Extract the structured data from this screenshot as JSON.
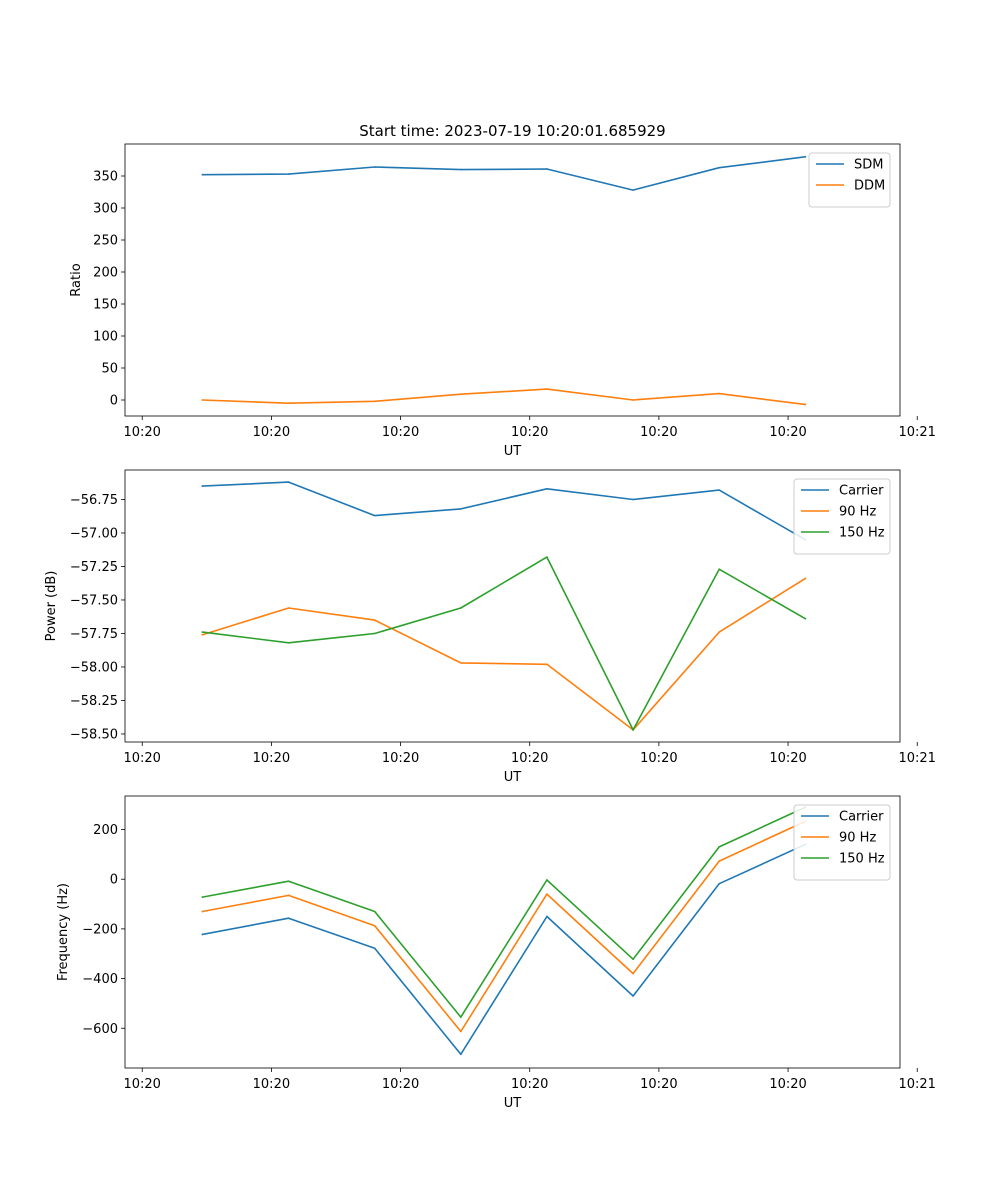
{
  "figure": {
    "title": "Start time: 2023-07-19 10:20:01.685929"
  },
  "chart_data": [
    {
      "type": "line",
      "title": "Start time: 2023-07-19 10:20:01.685929",
      "xlabel": "UT",
      "ylabel": "Ratio",
      "xlim": [
        0,
        9
      ],
      "ylim": [
        -25,
        400
      ],
      "x_ticks": [
        0.2,
        1.7,
        3.2,
        4.7,
        6.2,
        7.7,
        9.2
      ],
      "x_tick_labels": [
        "10:20",
        "10:20",
        "10:20",
        "10:20",
        "10:20",
        "10:20",
        "10:21"
      ],
      "y_ticks": [
        0,
        50,
        100,
        150,
        200,
        250,
        300,
        350
      ],
      "y_tick_labels": [
        "0",
        "50",
        "100",
        "150",
        "200",
        "250",
        "300",
        "350"
      ],
      "x": [
        0.9,
        1.9,
        2.9,
        3.9,
        4.9,
        5.9,
        6.9,
        7.9
      ],
      "legend_position": "top-right",
      "series": [
        {
          "name": "SDM",
          "color": "#1f77b4",
          "values": [
            352,
            353,
            364,
            360,
            361,
            328,
            363,
            380
          ]
        },
        {
          "name": "DDM",
          "color": "#ff7f0e",
          "values": [
            0,
            -5,
            -2,
            9,
            17,
            0,
            10,
            -7
          ]
        }
      ]
    },
    {
      "type": "line",
      "title": "",
      "xlabel": "UT",
      "ylabel": "Power (dB)",
      "xlim": [
        0,
        9
      ],
      "ylim": [
        -58.56,
        -56.53
      ],
      "x_ticks": [
        0.2,
        1.7,
        3.2,
        4.7,
        6.2,
        7.7,
        9.2
      ],
      "x_tick_labels": [
        "10:20",
        "10:20",
        "10:20",
        "10:20",
        "10:20",
        "10:20",
        "10:21"
      ],
      "y_ticks": [
        -56.75,
        -57.0,
        -57.25,
        -57.5,
        -57.75,
        -58.0,
        -58.25,
        -58.5
      ],
      "y_tick_labels": [
        "−56.75",
        "−57.00",
        "−57.25",
        "−57.50",
        "−57.75",
        "−58.00",
        "−58.25",
        "−58.50"
      ],
      "x": [
        0.9,
        1.9,
        2.9,
        3.9,
        4.9,
        5.9,
        6.9,
        7.9
      ],
      "legend_position": "top-right",
      "series": [
        {
          "name": "Carrier",
          "color": "#1f77b4",
          "values": [
            -56.65,
            -56.62,
            -56.87,
            -56.82,
            -56.67,
            -56.75,
            -56.68,
            -57.05
          ]
        },
        {
          "name": "90 Hz",
          "color": "#ff7f0e",
          "values": [
            -57.76,
            -57.56,
            -57.65,
            -57.97,
            -57.98,
            -58.47,
            -57.74,
            -57.34
          ]
        },
        {
          "name": "150 Hz",
          "color": "#2ca02c",
          "values": [
            -57.74,
            -57.82,
            -57.75,
            -57.56,
            -57.18,
            -58.47,
            -57.27,
            -57.64
          ]
        }
      ]
    },
    {
      "type": "line",
      "title": "",
      "xlabel": "UT",
      "ylabel": "Frequency (Hz)",
      "xlim": [
        0,
        9
      ],
      "ylim": [
        -760,
        335
      ],
      "x_ticks": [
        0.2,
        1.7,
        3.2,
        4.7,
        6.2,
        7.7,
        9.2
      ],
      "x_tick_labels": [
        "10:20",
        "10:20",
        "10:20",
        "10:20",
        "10:20",
        "10:20",
        "10:21"
      ],
      "y_ticks": [
        200,
        0,
        -200,
        -400,
        -600
      ],
      "y_tick_labels": [
        "200",
        "0",
        "−200",
        "−400",
        "−600"
      ],
      "x": [
        0.9,
        1.9,
        2.9,
        3.9,
        4.9,
        5.9,
        6.9,
        7.9
      ],
      "legend_position": "top-right",
      "series": [
        {
          "name": "Carrier",
          "color": "#1f77b4",
          "values": [
            -222,
            -157,
            -278,
            -705,
            -150,
            -470,
            -18,
            140
          ]
        },
        {
          "name": "90 Hz",
          "color": "#ff7f0e",
          "values": [
            -130,
            -65,
            -187,
            -613,
            -60,
            -380,
            73,
            233
          ]
        },
        {
          "name": "150 Hz",
          "color": "#2ca02c",
          "values": [
            -72,
            -8,
            -130,
            -555,
            -3,
            -322,
            130,
            290
          ]
        }
      ]
    }
  ]
}
